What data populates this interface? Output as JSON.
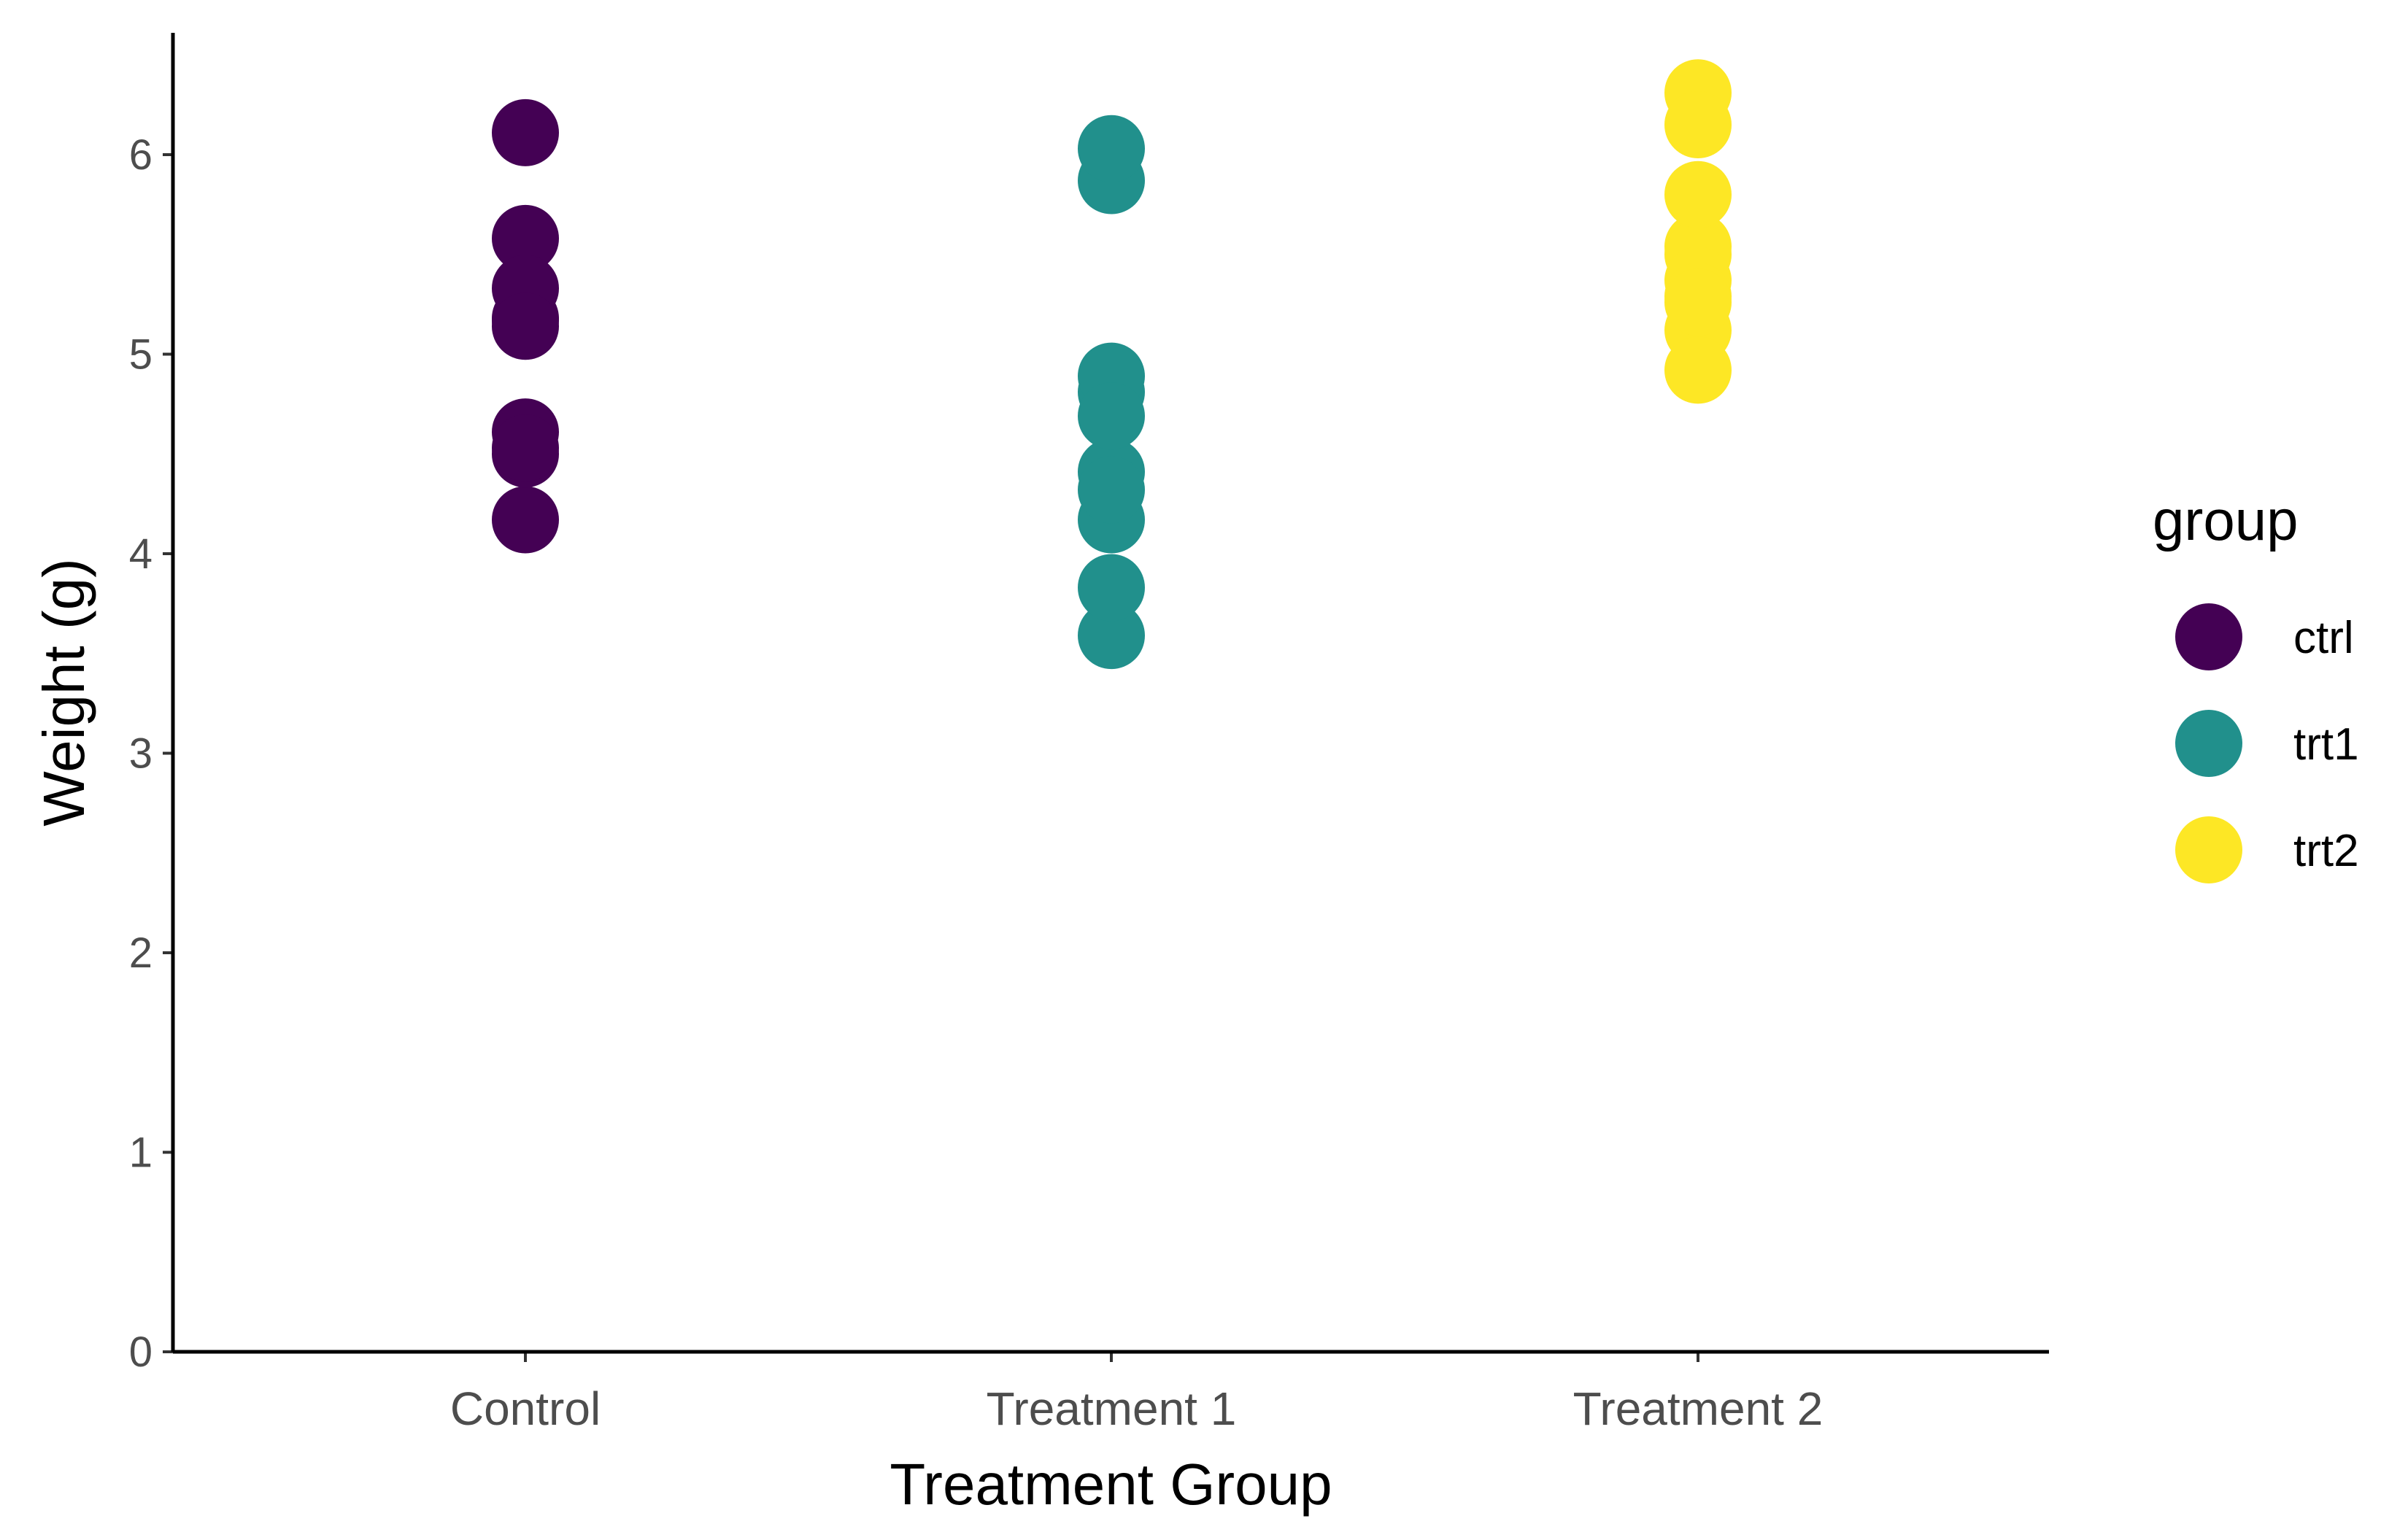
{
  "chart_data": {
    "type": "scatter",
    "xlabel": "Treatment Group",
    "ylabel": "Weight (g)",
    "ylim": [
      0,
      6.6
    ],
    "yticks": [
      0,
      1,
      2,
      3,
      4,
      5,
      6
    ],
    "categories": [
      "Control",
      "Treatment 1",
      "Treatment 2"
    ],
    "grid": false,
    "legend": {
      "title": "group",
      "placement": "right"
    },
    "series": [
      {
        "name": "ctrl",
        "category": "Control",
        "color": "#440154",
        "values": [
          4.17,
          5.58,
          5.18,
          6.11,
          4.5,
          4.61,
          5.17,
          4.53,
          5.33,
          5.14
        ]
      },
      {
        "name": "trt1",
        "category": "Treatment 1",
        "color": "#21908C",
        "values": [
          4.81,
          4.17,
          4.41,
          3.59,
          5.87,
          3.83,
          6.03,
          4.89,
          4.32,
          4.69
        ]
      },
      {
        "name": "trt2",
        "category": "Treatment 2",
        "color": "#FDE725",
        "values": [
          6.31,
          5.12,
          5.54,
          5.5,
          5.37,
          5.29,
          4.92,
          6.15,
          5.8,
          5.26
        ]
      }
    ]
  }
}
